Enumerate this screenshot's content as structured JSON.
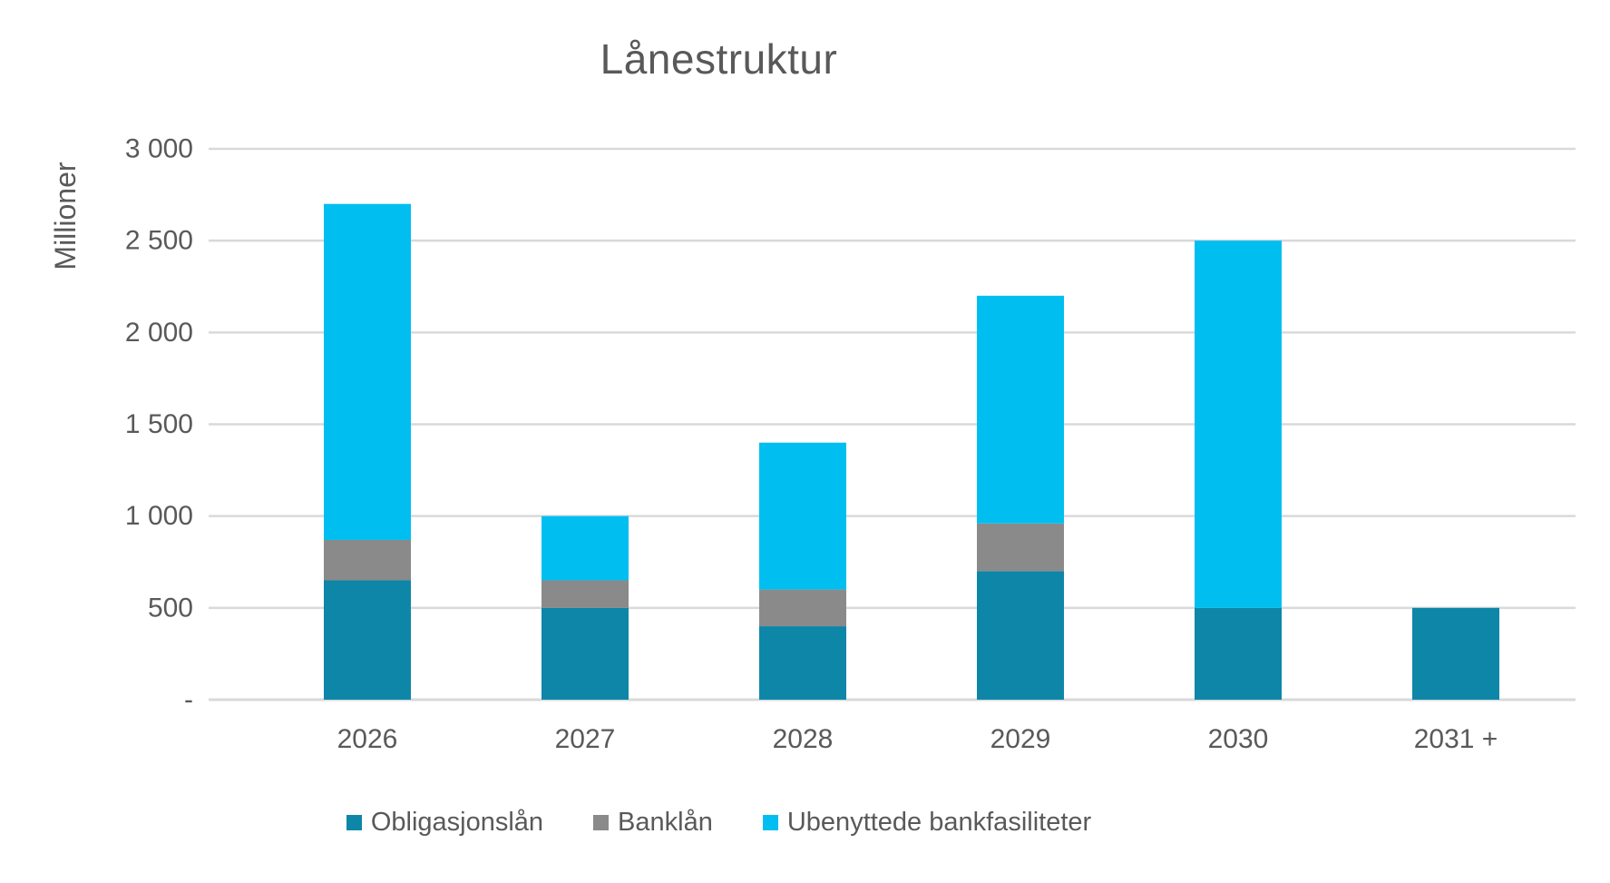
{
  "chart_data": {
    "type": "bar",
    "stacked": true,
    "title": "Lånestruktur",
    "ylabel": "Millioner",
    "xlabel": "",
    "categories": [
      "2026",
      "2027",
      "2028",
      "2029",
      "2030",
      "2031 +"
    ],
    "series": [
      {
        "name": "Obligasjonslån",
        "color": "#0E86A8",
        "values": [
          650,
          500,
          400,
          700,
          500,
          500
        ]
      },
      {
        "name": "Banklån",
        "color": "#8A8A8A",
        "values": [
          220,
          150,
          200,
          260,
          0,
          0
        ]
      },
      {
        "name": "Ubenyttede bankfasiliteter",
        "color": "#00BFF0",
        "values": [
          1830,
          350,
          800,
          1240,
          2000,
          0
        ]
      }
    ],
    "totals": [
      2700,
      1000,
      1400,
      2200,
      2500,
      500
    ],
    "ylim": [
      0,
      3000
    ],
    "yticks": [
      {
        "value": 3000,
        "label": "3 000"
      },
      {
        "value": 2500,
        "label": "2 500"
      },
      {
        "value": 2000,
        "label": "2 000"
      },
      {
        "value": 1500,
        "label": "1 500"
      },
      {
        "value": 1000,
        "label": "1 000"
      },
      {
        "value": 500,
        "label": "500"
      },
      {
        "value": 0,
        "label": "-"
      }
    ],
    "grid": true,
    "legend_position": "bottom",
    "colors": {
      "grid": "#D9D9D9",
      "text": "#595959",
      "background": "#FFFFFF"
    }
  }
}
